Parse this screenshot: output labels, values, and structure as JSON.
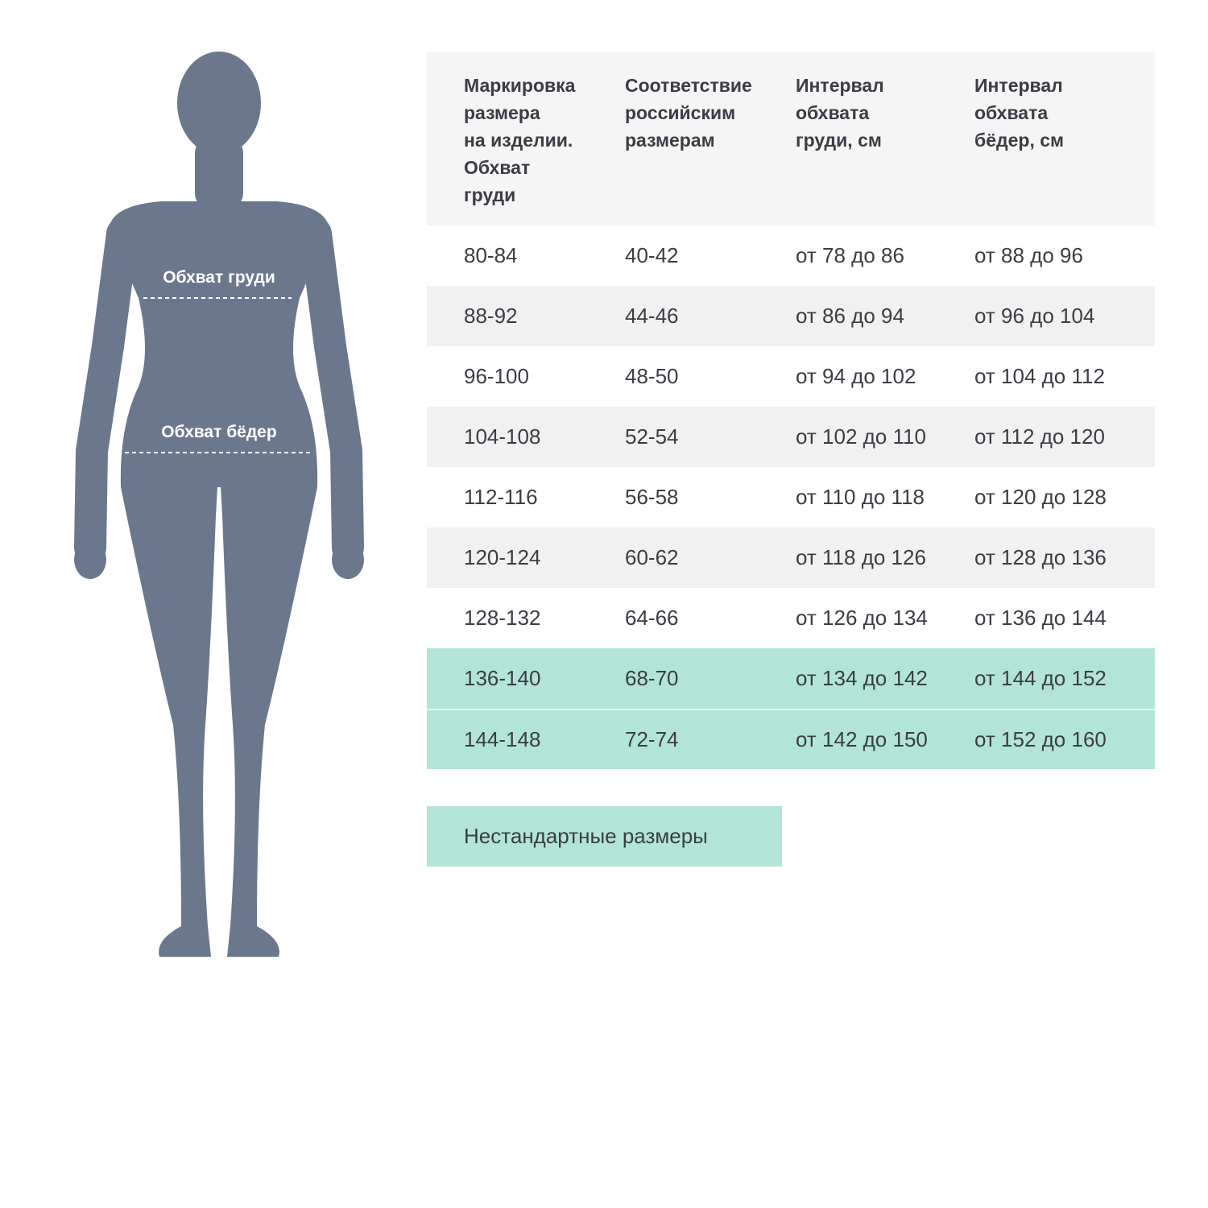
{
  "figure": {
    "chest_label": "Обхват груди",
    "hips_label": "Обхват бёдер",
    "silhouette_color": "#6b778d"
  },
  "table": {
    "headers": [
      "Маркировка\nразмера\nна изделии.\nОбхват\nгруди",
      "Соответствие\nроссийским\nразмерам",
      "Интервал\nобхвата\nгруди, см",
      "Интервал\nобхвата\nбёдер, см"
    ],
    "rows": [
      [
        "80-84",
        "40-42",
        "от 78 до 86",
        "от 88 до 96"
      ],
      [
        "88-92",
        "44-46",
        "от 86 до 94",
        "от 96 до 104"
      ],
      [
        "96-100",
        "48-50",
        "от 94 до 102",
        "от 104 до 112"
      ],
      [
        "104-108",
        "52-54",
        "от 102 до 110",
        "от 112 до 120"
      ],
      [
        "112-116",
        "56-58",
        "от 110 до 118",
        "от 120 до 128"
      ],
      [
        "120-124",
        "60-62",
        "от 118 до 126",
        "от 128 до 136"
      ],
      [
        "128-132",
        "64-66",
        "от 126 до 134",
        "от 136 до 144"
      ],
      [
        "136-140",
        "68-70",
        "от 134 до 142",
        "от 144 до 152"
      ],
      [
        "144-148",
        "72-74",
        "от 142 до 150",
        "от 152 до 160"
      ]
    ],
    "highlight_color": "#b2e5d8"
  },
  "legend": {
    "label": "Нестандартные размеры"
  }
}
